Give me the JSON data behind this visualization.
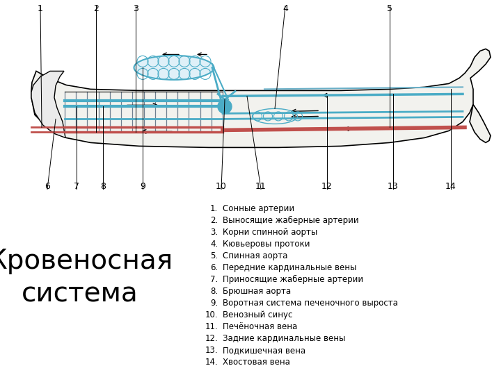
{
  "title_left": "Кровеносная\nсистема",
  "bg_color": "#ffffff",
  "legend_items": [
    "Сонные артерии",
    "Выносящие жаберные артерии",
    "Корни спинной аорты",
    "Кювьеровы протоки",
    "Спинная аорта",
    "Передние кардинальные вены",
    "Приносящие жаберные артерии",
    "Брюшная аорта",
    "Воротная система печеночного выроста",
    "Венозный синус",
    "Печёночная вена",
    "Задние кардинальные вены",
    "Подкишечная вена",
    "Хвостовая вена"
  ],
  "red_color": "#c0504d",
  "blue_color": "#4bacc6",
  "outline_color": "#000000"
}
